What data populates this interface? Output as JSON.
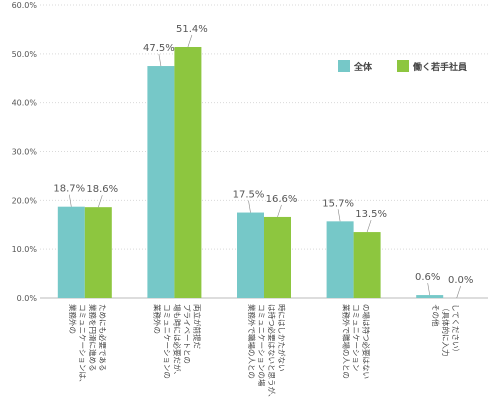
{
  "chart_data": {
    "type": "bar",
    "categories": [
      [
        "業務外の",
        "コミュニケーションは、",
        "業務を円滑に進める",
        "ためにも必要である"
      ],
      [
        "業務外の",
        "コミュニケーションの",
        "場も時には必要だが、",
        "プライベートとの",
        "両立が前提だ"
      ],
      [
        "業務外で職場の人との",
        "コミュニケーションの場",
        "は持つ必要はないと思うが、",
        "時にはしかたがない"
      ],
      [
        "業務外で職場の人との",
        "コミュニケーション",
        "の場は持つ必要はない"
      ],
      [
        "その他",
        "（具体的に入力",
        "してください）"
      ]
    ],
    "series": [
      {
        "name": "全体",
        "values": [
          18.7,
          47.5,
          17.5,
          15.7,
          0.6
        ],
        "labels": [
          "18.7%",
          "47.5%",
          "17.5%",
          "15.7%",
          "0.6%"
        ],
        "color": "#76C8C8"
      },
      {
        "name": "働く若手社員",
        "values": [
          18.6,
          51.4,
          16.6,
          13.5,
          0.0
        ],
        "labels": [
          "18.6%",
          "51.4%",
          "16.6%",
          "13.5%",
          "0.0%"
        ],
        "color": "#8DC63F"
      }
    ],
    "yticks": [
      "0.0%",
      "10.0%",
      "20.0%",
      "30.0%",
      "40.0%",
      "50.0%",
      "60.0%"
    ],
    "ylim": [
      0,
      60
    ],
    "grid": true,
    "legend_position": "top-right",
    "title": "",
    "xlabel": "",
    "ylabel": ""
  }
}
